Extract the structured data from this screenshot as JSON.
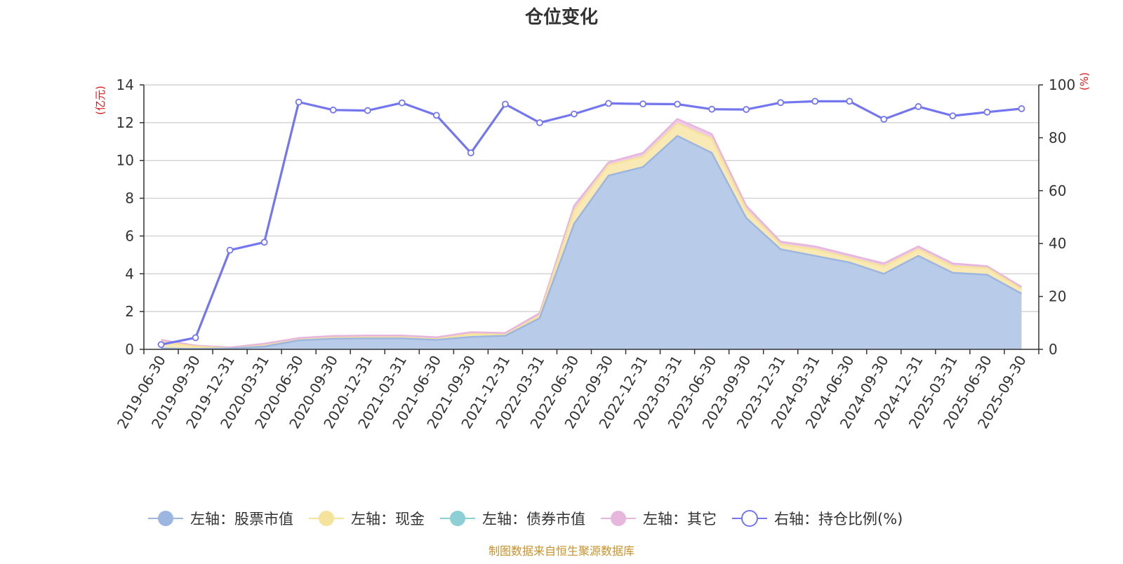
{
  "chart_data": {
    "type": "area",
    "title": "仓位变化",
    "left_axis_unit": "(亿元)",
    "right_axis_unit": "(%)",
    "left_ylim": [
      0,
      14
    ],
    "left_ticks": [
      0,
      2,
      4,
      6,
      8,
      10,
      12,
      14
    ],
    "right_ylim": [
      0,
      100
    ],
    "right_ticks": [
      0,
      20,
      40,
      60,
      80,
      100
    ],
    "grid": true,
    "legend_position": "bottom",
    "stacked": true,
    "categories": [
      "2019-06-30",
      "2019-09-30",
      "2019-12-31",
      "2020-03-31",
      "2020-06-30",
      "2020-09-30",
      "2020-12-31",
      "2021-03-31",
      "2021-06-30",
      "2021-09-30",
      "2021-12-31",
      "2022-03-31",
      "2022-06-30",
      "2022-09-30",
      "2022-12-31",
      "2023-03-31",
      "2023-06-30",
      "2023-09-30",
      "2023-12-31",
      "2024-03-31",
      "2024-06-30",
      "2024-09-30",
      "2024-12-31",
      "2025-03-31",
      "2025-06-30",
      "2025-09-30"
    ],
    "series": [
      {
        "name": "左轴：股票市值",
        "axis": "left",
        "color": "#9db6e0",
        "fill": "#b8cbe9",
        "values": [
          0.05,
          0.03,
          0.05,
          0.15,
          0.48,
          0.56,
          0.58,
          0.58,
          0.5,
          0.66,
          0.72,
          1.65,
          6.65,
          9.2,
          9.65,
          11.3,
          10.4,
          6.95,
          5.3,
          4.95,
          4.6,
          4.0,
          4.95,
          4.05,
          3.95,
          2.95
        ]
      },
      {
        "name": "左轴：现金",
        "axis": "left",
        "color": "#f5e39c",
        "fill": "#f9e9b5",
        "values": [
          0.35,
          0.12,
          0.0,
          0.05,
          0.02,
          0.05,
          0.05,
          0.05,
          0.04,
          0.15,
          0.05,
          0.12,
          0.7,
          0.55,
          0.55,
          0.65,
          0.75,
          0.45,
          0.25,
          0.35,
          0.25,
          0.4,
          0.35,
          0.35,
          0.35,
          0.25
        ]
      },
      {
        "name": "左轴：债券市值",
        "axis": "left",
        "color": "#8ccfd4",
        "fill": "#8ccfd4",
        "values": [
          0,
          0,
          0,
          0,
          0,
          0,
          0,
          0,
          0,
          0,
          0,
          0,
          0,
          0,
          0,
          0,
          0,
          0,
          0,
          0,
          0,
          0,
          0,
          0,
          0,
          0
        ]
      },
      {
        "name": "左轴：其它",
        "axis": "left",
        "color": "#e6b6dc",
        "fill": "#efc9e6",
        "values": [
          0.1,
          0.05,
          0.05,
          0.1,
          0.1,
          0.1,
          0.1,
          0.1,
          0.1,
          0.1,
          0.1,
          0.15,
          0.25,
          0.15,
          0.2,
          0.25,
          0.25,
          0.2,
          0.15,
          0.15,
          0.15,
          0.15,
          0.15,
          0.15,
          0.1,
          0.1
        ]
      },
      {
        "name": "右轴：持仓比例(%)",
        "axis": "right",
        "color": "#7476f0",
        "values": [
          1.8,
          4.4,
          37.5,
          40.5,
          93.5,
          90.5,
          90.3,
          93.2,
          88.5,
          74.3,
          92.7,
          85.7,
          89.0,
          93.0,
          92.8,
          92.7,
          90.8,
          90.7,
          93.3,
          93.8,
          93.8,
          87.0,
          91.8,
          88.3,
          89.7,
          91.0
        ]
      }
    ]
  },
  "footer": {
    "source": "制图数据来自恒生聚源数据库"
  }
}
